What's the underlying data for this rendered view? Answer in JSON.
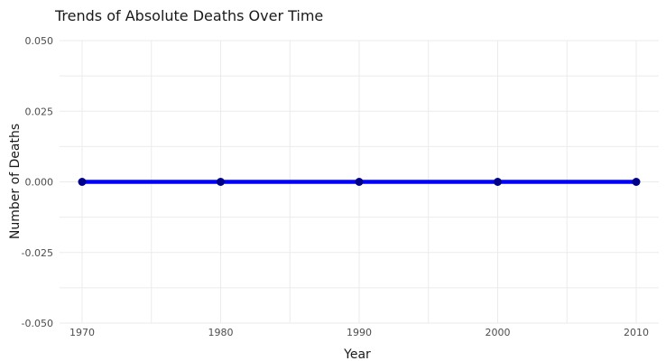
{
  "chart_data": {
    "type": "line",
    "title": "Trends of Absolute Deaths Over Time",
    "xlabel": "Year",
    "ylabel": "Number of Deaths",
    "x": [
      1970,
      1980,
      1990,
      2000,
      2010
    ],
    "x_tick_labels": [
      "1970",
      "1980",
      "1990",
      "2000",
      "2010"
    ],
    "y_tick_labels": [
      "0.050",
      "0.025",
      "0.000",
      "-0.025",
      "-0.050"
    ],
    "y_ticks": [
      0.05,
      0.025,
      0,
      -0.025,
      -0.05
    ],
    "xlim": [
      1970,
      2010
    ],
    "ylim": [
      -0.05,
      0.05
    ],
    "grid": true,
    "legend": false,
    "series": [
      {
        "values": [
          0,
          0,
          0,
          0,
          0
        ],
        "line_color": "#0000ff",
        "point_color": "#00008b"
      }
    ]
  }
}
